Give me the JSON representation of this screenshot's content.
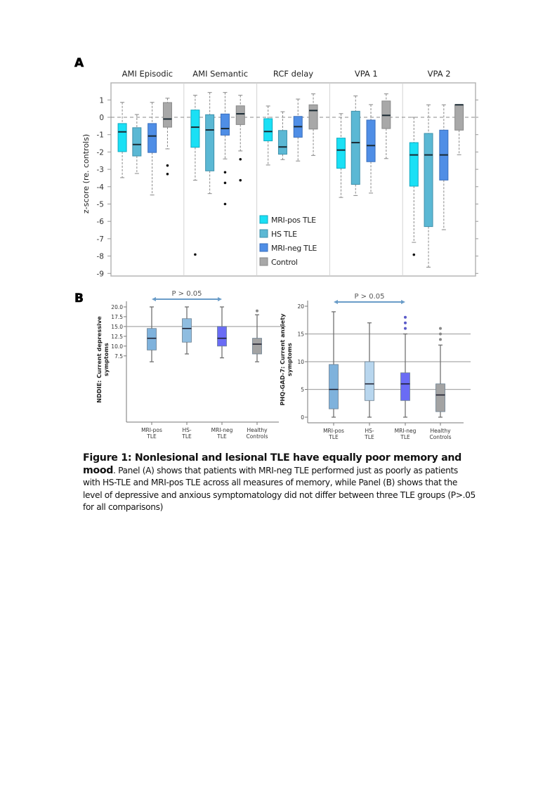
{
  "figure": {
    "panel_a_letter": "A",
    "panel_b_letter": "B",
    "caption": {
      "title_line1": "Figure 1: Nonlesional and lesional TLE have equally poor memory and",
      "title_line2": "mood",
      "body": ". Panel (A) shows that patients with MRI-neg TLE performed just as poorly as patients with HS-TLE and MRI-pos TLE across all measures of memory, while Panel (B) shows that the level of depressive and anxious symptomatology did not differ between three TLE groups (P>.05 for all comparisons)"
    }
  },
  "colors": {
    "mri_pos_a": "#1ae0f5",
    "hs_a": "#5bb8d4",
    "mri_neg_a": "#4f8ee6",
    "control_a": "#a8a8a8",
    "mri_pos_b": "#7fb2dc",
    "hs_b_left": "#8fbde0",
    "hs_b_right": "#b8d6ee",
    "mri_neg_b": "#6a6cf5",
    "control_b": "#a3a3a3",
    "arrow": "#6a9cc8"
  },
  "chart_data": [
    {
      "type": "box",
      "panel": "A",
      "title": "",
      "xlabel": "",
      "ylabel": "z-score (re. controls)",
      "ylim": [
        -9,
        1.6
      ],
      "yticks": [
        1,
        0,
        -1,
        -2,
        -3,
        -4,
        -5,
        -6,
        -7,
        -8,
        -9
      ],
      "reference_line": 0,
      "legend": {
        "placement": "lower-middle",
        "entries": [
          "MRI-pos TLE",
          "HS TLE",
          "MRI-neg TLE",
          "Control"
        ]
      },
      "categories": [
        "AMI Episodic",
        "AMI Semantic",
        "RCF delay",
        "VPA 1",
        "VPA 2"
      ],
      "series": [
        {
          "name": "MRI-pos TLE",
          "boxes": [
            {
              "min": -3.48,
              "q1": -1.98,
              "median": -0.84,
              "q3": -0.36,
              "max": 0.86,
              "outliers": []
            },
            {
              "min": -3.63,
              "q1": -1.73,
              "median": -0.57,
              "q3": 0.42,
              "max": 1.27,
              "outliers": [
                -7.91
              ]
            },
            {
              "min": -2.75,
              "q1": -1.36,
              "median": -0.82,
              "q3": -0.08,
              "max": 0.65,
              "outliers": []
            },
            {
              "min": -4.62,
              "q1": -2.94,
              "median": -1.89,
              "q3": -1.2,
              "max": 0.21,
              "outliers": []
            },
            {
              "min": -7.21,
              "q1": -3.97,
              "median": -2.17,
              "q3": -1.46,
              "max": 0.0,
              "outliers": [
                -7.92
              ]
            }
          ]
        },
        {
          "name": "HS TLE",
          "boxes": [
            {
              "min": -3.24,
              "q1": -2.23,
              "median": -1.57,
              "q3": -0.6,
              "max": 0.16,
              "outliers": []
            },
            {
              "min": -4.4,
              "q1": -3.09,
              "median": -0.73,
              "q3": 0.15,
              "max": 1.43,
              "outliers": []
            },
            {
              "min": -2.44,
              "q1": -2.13,
              "median": -1.71,
              "q3": -0.76,
              "max": 0.32,
              "outliers": []
            },
            {
              "min": -4.51,
              "q1": -3.87,
              "median": -1.46,
              "q3": 0.35,
              "max": 1.23,
              "outliers": []
            },
            {
              "min": -8.64,
              "q1": -6.3,
              "median": -2.17,
              "q3": -0.93,
              "max": 0.72,
              "outliers": []
            }
          ]
        },
        {
          "name": "MRI-neg TLE",
          "boxes": [
            {
              "min": -4.48,
              "q1": -2.03,
              "median": -1.08,
              "q3": -0.36,
              "max": 0.86,
              "outliers": []
            },
            {
              "min": -2.4,
              "q1": -1.03,
              "median": -0.65,
              "q3": 0.19,
              "max": 1.43,
              "outliers": [
                -3.17,
                -3.78,
                -5.0
              ]
            },
            {
              "min": -2.52,
              "q1": -1.15,
              "median": -0.54,
              "q3": 0.05,
              "max": 1.05,
              "outliers": []
            },
            {
              "min": -4.37,
              "q1": -2.56,
              "median": -1.63,
              "q3": -0.16,
              "max": 0.73,
              "outliers": []
            },
            {
              "min": -6.48,
              "q1": -3.62,
              "median": -2.17,
              "q3": -0.74,
              "max": 0.72,
              "outliers": []
            }
          ]
        },
        {
          "name": "Control",
          "boxes": [
            {
              "min": -1.82,
              "q1": -0.57,
              "median": -0.1,
              "q3": 0.85,
              "max": 1.1,
              "outliers": [
                -2.78,
                -3.27
              ]
            },
            {
              "min": -1.94,
              "q1": -0.42,
              "median": 0.2,
              "q3": 0.66,
              "max": 1.27,
              "outliers": [
                -2.42,
                -3.63
              ]
            },
            {
              "min": -2.2,
              "q1": -0.68,
              "median": 0.39,
              "q3": 0.72,
              "max": 1.35,
              "outliers": []
            },
            {
              "min": -2.38,
              "q1": -0.65,
              "median": 0.11,
              "q3": 0.94,
              "max": 1.35,
              "outliers": []
            },
            {
              "min": -2.16,
              "q1": -0.74,
              "median": 0.72,
              "q3": 0.72,
              "max": 0.72,
              "outliers": []
            }
          ]
        }
      ]
    },
    {
      "type": "box",
      "panel": "B-left",
      "title": "",
      "annotation": "P > 0.05",
      "xlabel": "",
      "ylabel_line1": "NDDIE: Current depressive",
      "ylabel_line2": "symptoms",
      "ylim": [
        5.5,
        20.5
      ],
      "yticks": [
        "20.0",
        "17.5",
        "15.0",
        "12.5",
        "10.0",
        "7.5"
      ],
      "ytick_values": [
        20,
        17.5,
        15,
        12.5,
        10,
        7.5
      ],
      "reference_lines": [
        15
      ],
      "categories": [
        {
          "line1": "MRI-pos",
          "line2": "TLE"
        },
        {
          "line1": "HS-",
          "line2": "TLE"
        },
        {
          "line1": "MRI-neg",
          "line2": "TLE"
        },
        {
          "line1": "Healthy",
          "line2": "Controls"
        }
      ],
      "boxes": [
        {
          "min": 6,
          "q1": 9,
          "median": 12,
          "q3": 14.5,
          "max": 20,
          "outliers": []
        },
        {
          "min": 8,
          "q1": 11,
          "median": 14.5,
          "q3": 17,
          "max": 20,
          "outliers": []
        },
        {
          "min": 7,
          "q1": 10,
          "median": 12,
          "q3": 15,
          "max": 20,
          "outliers": []
        },
        {
          "min": 6,
          "q1": 8,
          "median": 10.5,
          "q3": 12,
          "max": 18,
          "outliers": [
            19
          ]
        }
      ]
    },
    {
      "type": "box",
      "panel": "B-right",
      "title": "",
      "annotation": "P > 0.05",
      "xlabel": "",
      "ylabel_line1": "PHQ-GAD-7: Current anxiety",
      "ylabel_line2": "symptoms",
      "ylim": [
        -1,
        20.5
      ],
      "yticks": [
        "20",
        "15",
        "10",
        "5",
        "0"
      ],
      "ytick_values": [
        20,
        15,
        10,
        5,
        0
      ],
      "reference_lines": [
        5,
        10,
        15
      ],
      "categories": [
        {
          "line1": "MRI-pos",
          "line2": "TLE"
        },
        {
          "line1": "HS-",
          "line2": "TLE"
        },
        {
          "line1": "MRI-neg",
          "line2": "TLE"
        },
        {
          "line1": "Healthy",
          "line2": "Controls"
        }
      ],
      "boxes": [
        {
          "min": 0,
          "q1": 1.5,
          "median": 5,
          "q3": 9.5,
          "max": 19,
          "outliers": []
        },
        {
          "min": 0,
          "q1": 3,
          "median": 6,
          "q3": 10,
          "max": 17,
          "outliers": []
        },
        {
          "min": 0,
          "q1": 3,
          "median": 6,
          "q3": 8,
          "max": 15,
          "outliers": [
            16,
            17,
            18
          ]
        },
        {
          "min": 0,
          "q1": 1,
          "median": 4,
          "q3": 6,
          "max": 13,
          "outliers": [
            14,
            15,
            16
          ]
        }
      ]
    }
  ]
}
